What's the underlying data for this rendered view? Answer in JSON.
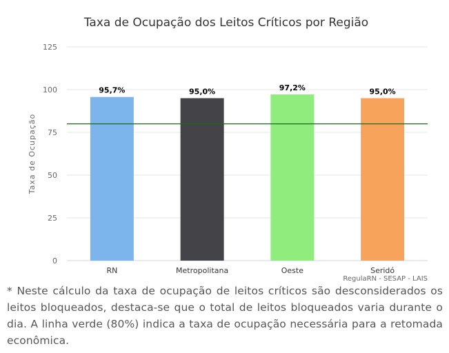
{
  "chart_data": {
    "type": "bar",
    "title": "Taxa de Ocupação dos Leitos Críticos por Região",
    "xlabel": "",
    "ylabel": "Taxa de Ocupação",
    "categories": [
      "RN",
      "Metropolitana",
      "Oeste",
      "Seridó"
    ],
    "values": [
      95.7,
      95.0,
      97.2,
      95.0
    ],
    "data_labels": [
      "95,7%",
      "95,0%",
      "97,2%",
      "95,0%"
    ],
    "colors": [
      "#7cb5ec",
      "#434348",
      "#90ed7d",
      "#f7a35c"
    ],
    "ylim": [
      0,
      125
    ],
    "yticks": [
      0,
      25,
      50,
      75,
      100,
      125
    ],
    "grid": true,
    "reference_line": {
      "value": 80,
      "color": "#1a6b1a"
    },
    "credits": "RegulaRN - SESAP - LAIS"
  },
  "note": "* Neste cálculo da taxa de ocupação de leitos críticos são desconsiderados os leitos bloqueados, destaca-se que o total de leitos bloqueados varia durante o dia. A linha verde (80%) indica a taxa de ocupação necessária para a retomada econômica."
}
